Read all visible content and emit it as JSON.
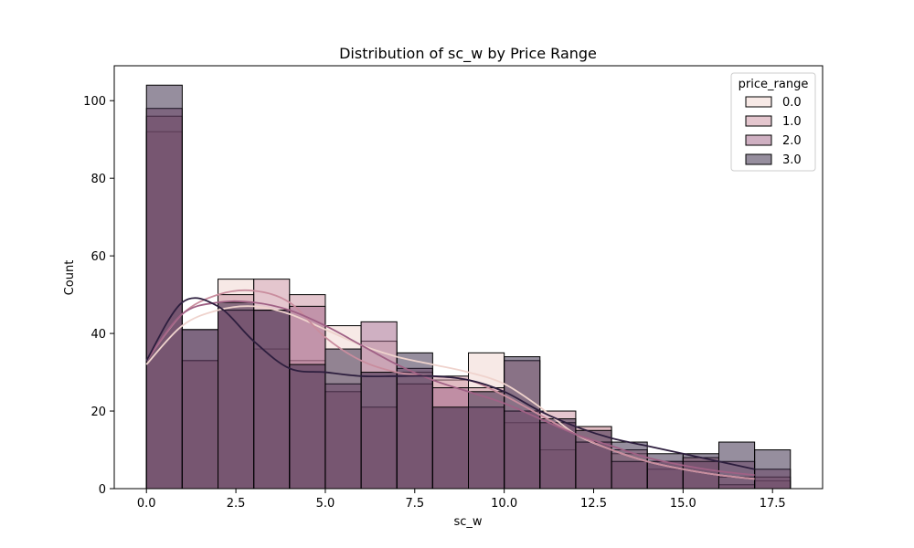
{
  "chart_data": {
    "type": "histogram",
    "title": "Distribution of sc_w by Price Range",
    "xlabel": "sc_w",
    "ylabel": "Count",
    "xlim": [
      -0.9,
      18.9
    ],
    "ylim": [
      0,
      109
    ],
    "xticks": [
      0.0,
      2.5,
      5.0,
      7.5,
      10.0,
      12.5,
      15.0,
      17.5
    ],
    "xtick_labels": [
      "0.0",
      "2.5",
      "5.0",
      "7.5",
      "10.0",
      "12.5",
      "15.0",
      "17.5"
    ],
    "yticks": [
      0,
      20,
      40,
      60,
      80,
      100
    ],
    "ytick_labels": [
      "0",
      "20",
      "40",
      "60",
      "80",
      "100"
    ],
    "bin_edges": [
      0,
      1,
      2,
      3,
      4,
      5,
      6,
      7,
      8,
      9,
      10,
      11,
      12,
      13,
      14,
      15,
      16,
      17,
      18
    ],
    "grid": false,
    "legend": {
      "title": "price_range",
      "placement": "top-right"
    },
    "series": [
      {
        "name": "0.0",
        "color": "#efd3cd",
        "alpha": 0.5,
        "values": [
          92,
          33,
          54,
          36,
          33,
          42,
          38,
          30,
          28,
          35,
          17,
          10,
          16,
          9,
          5,
          8,
          3,
          2
        ],
        "kde": [
          32,
          42,
          46,
          47,
          45,
          41,
          37,
          34,
          32,
          30,
          27,
          21,
          14,
          10,
          7,
          5,
          3.5,
          2.5
        ]
      },
      {
        "name": "1.0",
        "color": "#c98d9e",
        "alpha": 0.5,
        "values": [
          96,
          33,
          50,
          54,
          50,
          25,
          21,
          27,
          29,
          26,
          33,
          20,
          16,
          10,
          7,
          8,
          1,
          3
        ],
        "kde": [
          33,
          45,
          50,
          51,
          48,
          39,
          33,
          30,
          29,
          28,
          24,
          19,
          14,
          10,
          7,
          5,
          3.5,
          2.5
        ]
      },
      {
        "name": "2.0",
        "color": "#a06185",
        "alpha": 0.5,
        "values": [
          98,
          41,
          46,
          46,
          47,
          27,
          43,
          31,
          26,
          21,
          20,
          17,
          12,
          7,
          7,
          7,
          7,
          5
        ],
        "kde": [
          33,
          45,
          48,
          48,
          46,
          42,
          37,
          32,
          28,
          25,
          22,
          18,
          14,
          11,
          8,
          6,
          4.5,
          3.5
        ]
      },
      {
        "name": "3.0",
        "color": "#2d1e3e",
        "alpha": 0.5,
        "values": [
          104,
          41,
          48,
          46,
          32,
          36,
          30,
          35,
          21,
          25,
          34,
          18,
          15,
          12,
          9,
          9,
          12,
          10
        ],
        "kde": [
          33,
          48,
          47,
          38,
          31,
          30,
          29,
          29,
          29,
          28,
          25,
          20,
          16,
          13,
          11,
          9,
          7,
          5
        ]
      }
    ]
  }
}
